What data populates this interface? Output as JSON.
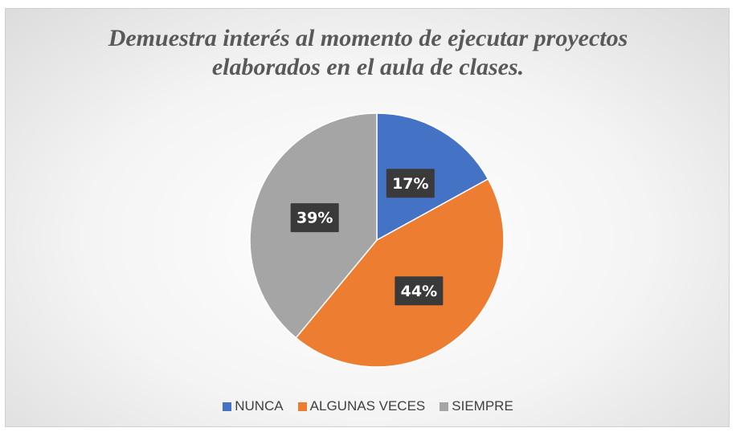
{
  "chart_data": {
    "type": "pie",
    "title": "Demuestra interés al momento de ejecutar proyectos elaborados en el aula de clases.",
    "categories": [
      "NUNCA",
      "ALGUNAS VECES",
      "SIEMPRE"
    ],
    "values": [
      17,
      44,
      39
    ],
    "value_labels": [
      "17%",
      "44%",
      "39%"
    ],
    "colors": [
      "#4472c4",
      "#ed7d31",
      "#a5a5a5"
    ],
    "legend": "bottom"
  }
}
